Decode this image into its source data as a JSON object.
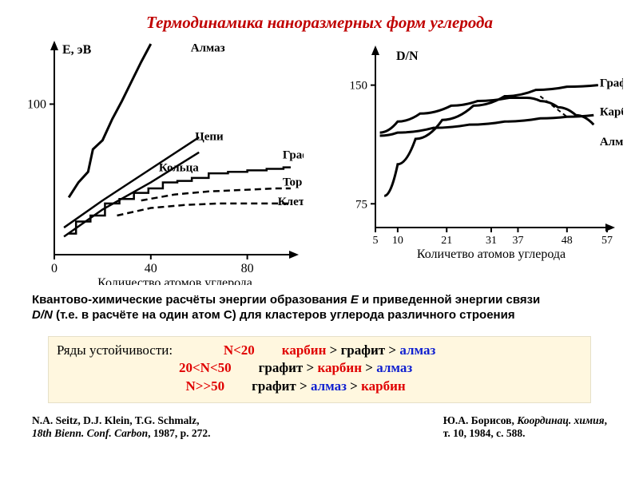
{
  "title": "Термодинамика наноразмерных форм углерода",
  "left_chart": {
    "type": "line",
    "y_axis_label": "E,  эВ",
    "x_axis_label": "Количество атомов углерода",
    "label_fontsize": 16,
    "xlim": [
      0,
      100
    ],
    "ylim": [
      0,
      140
    ],
    "yticks": [
      100
    ],
    "xticks": [
      0,
      40,
      80
    ],
    "axis_color": "#000000",
    "background_color": "#ffffff",
    "series": [
      {
        "name": "Алмаз",
        "label": "Алмаз",
        "color": "#000000",
        "width": 3,
        "dash": "none",
        "style": "jagged",
        "points": [
          [
            6,
            38
          ],
          [
            10,
            48
          ],
          [
            14,
            55
          ],
          [
            16,
            70
          ],
          [
            20,
            76
          ],
          [
            24,
            90
          ],
          [
            28,
            102
          ],
          [
            32,
            115
          ],
          [
            36,
            128
          ],
          [
            40,
            140
          ]
        ]
      },
      {
        "name": "Цепи",
        "label": "Цепи",
        "color": "#000000",
        "width": 2.5,
        "dash": "none",
        "style": "smooth",
        "points": [
          [
            4,
            18
          ],
          [
            20,
            36
          ],
          [
            40,
            57
          ],
          [
            60,
            78
          ]
        ]
      },
      {
        "name": "Кольца",
        "label": "Кольца",
        "color": "#000000",
        "width": 2.5,
        "dash": "none",
        "style": "smooth",
        "points": [
          [
            4,
            12
          ],
          [
            20,
            30
          ],
          [
            40,
            48
          ],
          [
            60,
            68
          ]
        ]
      },
      {
        "name": "Графит",
        "label": "Графит",
        "color": "#000000",
        "width": 2.5,
        "dash": "none",
        "style": "wavy",
        "points": [
          [
            6,
            14
          ],
          [
            12,
            22
          ],
          [
            18,
            26
          ],
          [
            24,
            34
          ],
          [
            30,
            37
          ],
          [
            36,
            41
          ],
          [
            42,
            44
          ],
          [
            48,
            48
          ],
          [
            54,
            49
          ],
          [
            60,
            51
          ],
          [
            68,
            54
          ],
          [
            76,
            55
          ],
          [
            84,
            56
          ],
          [
            92,
            57
          ],
          [
            98,
            58
          ]
        ]
      },
      {
        "name": "Тор",
        "label": "Top",
        "color": "#000000",
        "width": 2.5,
        "dash": "8,5",
        "style": "smooth",
        "points": [
          [
            36,
            36
          ],
          [
            50,
            40
          ],
          [
            64,
            42
          ],
          [
            78,
            43
          ],
          [
            92,
            44
          ],
          [
            98,
            44
          ]
        ]
      },
      {
        "name": "Клетка",
        "label": "Клетка",
        "color": "#000000",
        "width": 2.5,
        "dash": "8,5",
        "style": "smooth",
        "points": [
          [
            26,
            26
          ],
          [
            40,
            31
          ],
          [
            54,
            33
          ],
          [
            68,
            34
          ],
          [
            82,
            34
          ],
          [
            98,
            34
          ]
        ]
      }
    ]
  },
  "right_chart": {
    "type": "line",
    "y_axis_label": "D/N",
    "x_axis_label": "Количетво атомов углерода",
    "label_fontsize": 16,
    "xlim": [
      5,
      57
    ],
    "ylim": [
      60,
      170
    ],
    "yticks": [
      75,
      150
    ],
    "xticks": [
      5,
      10,
      21,
      31,
      37,
      48,
      57
    ],
    "axis_color": "#000000",
    "background_color": "#ffffff",
    "series": [
      {
        "name": "Графит",
        "label": "Графит",
        "color": "#000000",
        "width": 3,
        "dash": "none",
        "style": "smooth",
        "points": [
          [
            7,
            80
          ],
          [
            10,
            100
          ],
          [
            14,
            116
          ],
          [
            20,
            128
          ],
          [
            27,
            137
          ],
          [
            34,
            143
          ],
          [
            41,
            147
          ],
          [
            48,
            149
          ],
          [
            55,
            150
          ]
        ]
      },
      {
        "name": "Карбин",
        "label": "Карбин",
        "color": "#000000",
        "width": 3,
        "dash": "none",
        "style": "smooth",
        "points": [
          [
            6,
            120
          ],
          [
            10,
            127
          ],
          [
            15,
            132
          ],
          [
            22,
            137
          ],
          [
            28,
            140
          ],
          [
            35,
            142
          ],
          [
            39,
            142
          ],
          [
            42,
            140
          ],
          [
            46,
            136
          ],
          [
            50,
            131
          ],
          [
            54,
            125
          ]
        ]
      },
      {
        "name": "Алмаз",
        "label": "Алмаз",
        "color": "#000000",
        "width": 3,
        "dash": "none",
        "style": "smooth",
        "points": [
          [
            6,
            118
          ],
          [
            10,
            120
          ],
          [
            18,
            123
          ],
          [
            26,
            125
          ],
          [
            34,
            127
          ],
          [
            42,
            129
          ],
          [
            48,
            130
          ],
          [
            54,
            131
          ]
        ]
      }
    ],
    "crossover_dashes": [
      [
        42,
        143
      ],
      [
        48,
        130
      ]
    ]
  },
  "description": {
    "line1a": "Квантово-химические расчёты энергии образования ",
    "line1E": "E",
    "line1b": "  и приведенной энергии связи",
    "line2a_italic": "D/N",
    "line2b": "  (т.е. в расчёте на один атом C)  для кластеров углерода различного строения"
  },
  "stability": {
    "label": "Ряды устойчивости:",
    "rows": [
      {
        "cond": "N<20",
        "order": [
          {
            "t": "карбин",
            "c": "red"
          },
          {
            "t": " > ",
            "c": "black"
          },
          {
            "t": "графит",
            "c": "black"
          },
          {
            "t": " > ",
            "c": "black"
          },
          {
            "t": "алмаз",
            "c": "blue"
          }
        ]
      },
      {
        "cond": "20<N<50",
        "order": [
          {
            "t": "графит",
            "c": "black"
          },
          {
            "t": " > ",
            "c": "black"
          },
          {
            "t": "карбин",
            "c": "red"
          },
          {
            "t": " > ",
            "c": "black"
          },
          {
            "t": "алмаз",
            "c": "blue"
          }
        ]
      },
      {
        "cond": "N>>50",
        "order": [
          {
            "t": "графит",
            "c": "black"
          },
          {
            "t": " > ",
            "c": "black"
          },
          {
            "t": "алмаз",
            "c": "blue"
          },
          {
            "t": " > ",
            "c": "black"
          },
          {
            "t": "карбин",
            "c": "red"
          }
        ]
      }
    ],
    "cond_color": "#e00000"
  },
  "refs": {
    "left_l1": "N.A. Seitz, D.J. Klein, T.G. Schmalz,",
    "left_l2_it": "18th Bienn. Conf. Carbon",
    "left_l2_rest": ", 1987, p. 272.",
    "right_l1a": "Ю.А. Борисов, ",
    "right_l1_it": "Координац. химия",
    "right_l1b": ",",
    "right_l2": "т. 10, 1984, с. 588."
  }
}
